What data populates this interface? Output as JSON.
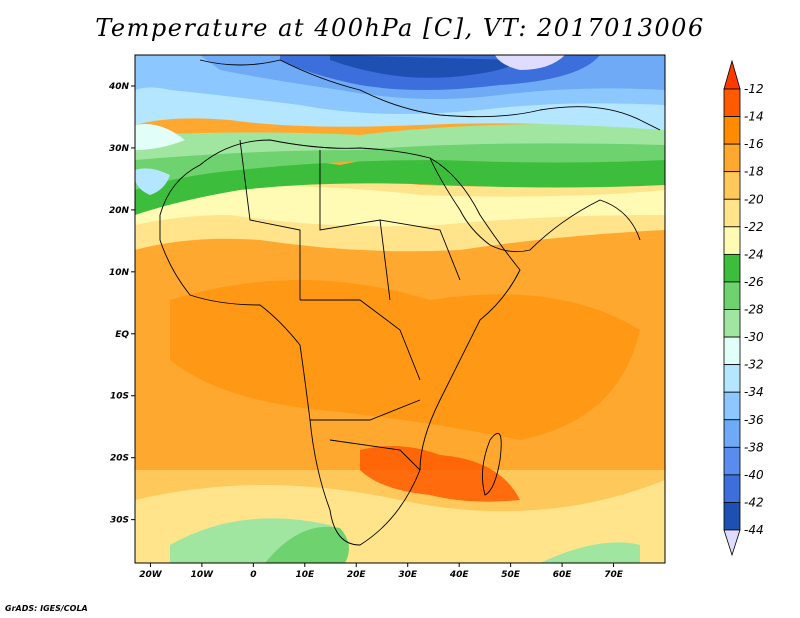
{
  "title": "Temperature at 400hPa [C], VT: 2017013006",
  "credit": "GrADS: IGES/COLA",
  "map": {
    "lon_ticks": [
      {
        "value": -20,
        "label": "20W"
      },
      {
        "value": -10,
        "label": "10W"
      },
      {
        "value": 0,
        "label": "0"
      },
      {
        "value": 10,
        "label": "10E"
      },
      {
        "value": 20,
        "label": "20E"
      },
      {
        "value": 30,
        "label": "30E"
      },
      {
        "value": 40,
        "label": "40E"
      },
      {
        "value": 50,
        "label": "50E"
      },
      {
        "value": 60,
        "label": "60E"
      },
      {
        "value": 70,
        "label": "70E"
      }
    ],
    "lat_ticks": [
      {
        "value": 40,
        "label": "40N"
      },
      {
        "value": 30,
        "label": "30N"
      },
      {
        "value": 20,
        "label": "20N"
      },
      {
        "value": 10,
        "label": "10N"
      },
      {
        "value": 0,
        "label": "EQ"
      },
      {
        "value": -10,
        "label": "10S"
      },
      {
        "value": -20,
        "label": "20S"
      },
      {
        "value": -30,
        "label": "30S"
      }
    ]
  },
  "colorbar": {
    "levels": [
      {
        "label": "-12",
        "color": "#ff5a00"
      },
      {
        "label": "-14",
        "color": "#ff8c00"
      },
      {
        "label": "-16",
        "color": "#ffa830"
      },
      {
        "label": "-18",
        "color": "#ffc85a"
      },
      {
        "label": "-20",
        "color": "#ffe48c"
      },
      {
        "label": "-22",
        "color": "#fffab4"
      },
      {
        "label": "-24",
        "color": "#3cbe3c"
      },
      {
        "label": "-26",
        "color": "#6ed26e"
      },
      {
        "label": "-28",
        "color": "#a0e6a0"
      },
      {
        "label": "-30",
        "color": "#e1fff8"
      },
      {
        "label": "-32",
        "color": "#b4e6ff"
      },
      {
        "label": "-34",
        "color": "#8cc8ff"
      },
      {
        "label": "-36",
        "color": "#6eaaf5"
      },
      {
        "label": "-38",
        "color": "#5a8cf0"
      },
      {
        "label": "-40",
        "color": "#3c6edc"
      },
      {
        "label": "-42",
        "color": "#1e50b4"
      },
      {
        "label": "-44",
        "color": "#0a1e82"
      }
    ],
    "top_color": "#ff3a00",
    "bottom_color": "#e0dcff"
  }
}
